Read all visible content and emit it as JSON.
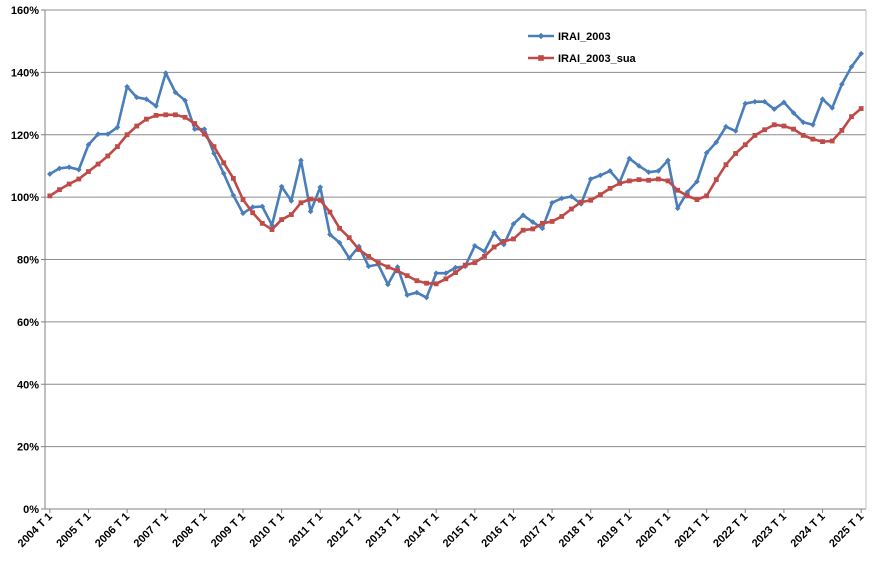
{
  "chart_data": {
    "type": "line",
    "title": "",
    "xlabel": "",
    "ylabel": "",
    "ylim": [
      0,
      160
    ],
    "y_ticks": [
      0,
      20,
      40,
      60,
      80,
      100,
      120,
      140,
      160
    ],
    "y_tick_labels": [
      "0%",
      "20%",
      "40%",
      "60%",
      "80%",
      "100%",
      "120%",
      "140%",
      "160%"
    ],
    "x_tick_labels": [
      "2004 T 1",
      "2005 T 1",
      "2006 T 1",
      "2007 T 1",
      "2008 T 1",
      "2009 T 1",
      "2010 T 1",
      "2011 T 1",
      "2012 T 1",
      "2013 T 1",
      "2014 T 1",
      "2015 T 1",
      "2016 T 1",
      "2017 T 1",
      "2018 T 1",
      "2019 T 1",
      "2020 T 1",
      "2021 T 1",
      "2022 T 1",
      "2023 T 1",
      "2024 T 1",
      "2025 T 1"
    ],
    "grid": "horizontal",
    "legend_position": "top-right",
    "series": [
      {
        "name": "IRAI_2003",
        "color": "#4a7ebb",
        "marker": "diamond",
        "values": [
          107.4,
          109.2,
          109.6,
          108.8,
          116.8,
          120.2,
          120.2,
          122.4,
          135.4,
          132.0,
          131.4,
          129.2,
          139.8,
          133.6,
          131.0,
          121.8,
          121.8,
          114.0,
          107.6,
          100.6,
          94.8,
          96.8,
          97.0,
          91.0,
          103.4,
          98.8,
          111.8,
          95.4,
          103.2,
          88.0,
          85.4,
          80.4,
          84.2,
          77.8,
          78.4,
          72.0,
          77.6,
          68.6,
          69.4,
          67.8,
          75.6,
          75.6,
          77.4,
          77.8,
          84.4,
          82.6,
          88.6,
          84.8,
          91.4,
          94.2,
          92.0,
          90.0,
          98.2,
          99.6,
          100.2,
          97.8,
          105.8,
          107.0,
          108.4,
          104.8,
          112.4,
          110.0,
          108.0,
          108.4,
          111.8,
          96.4,
          101.6,
          105.0,
          114.2,
          117.6,
          122.6,
          121.2,
          130.0,
          130.6,
          130.6,
          128.2,
          130.4,
          127.0,
          124.0,
          123.2,
          131.4,
          128.6,
          136.2,
          141.8,
          146.0
        ]
      },
      {
        "name": "IRAI_2003_sua",
        "color": "#be4b48",
        "marker": "square",
        "values": [
          100.4,
          102.4,
          104.2,
          105.8,
          108.2,
          110.6,
          113.2,
          116.2,
          120.0,
          122.8,
          125.0,
          126.2,
          126.4,
          126.4,
          125.6,
          123.6,
          120.2,
          116.2,
          111.0,
          106.0,
          99.2,
          95.0,
          91.6,
          89.6,
          92.8,
          94.4,
          98.2,
          99.4,
          99.0,
          95.2,
          90.0,
          87.0,
          83.2,
          81.0,
          79.0,
          77.6,
          76.4,
          74.8,
          73.2,
          72.4,
          72.2,
          73.8,
          75.8,
          78.2,
          79.0,
          81.0,
          84.0,
          85.8,
          86.6,
          89.4,
          89.8,
          91.6,
          92.2,
          93.8,
          96.2,
          98.4,
          99.0,
          100.8,
          102.8,
          104.4,
          105.2,
          105.6,
          105.4,
          105.8,
          105.2,
          102.2,
          100.4,
          99.2,
          100.4,
          105.6,
          110.4,
          114.0,
          116.8,
          119.8,
          121.6,
          123.2,
          122.8,
          121.8,
          119.8,
          118.6,
          117.8,
          118.0,
          121.4,
          125.8,
          128.4
        ]
      }
    ]
  }
}
